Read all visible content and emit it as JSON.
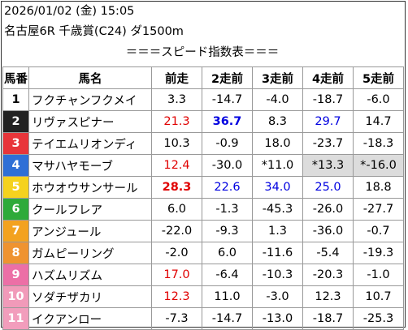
{
  "header": {
    "datetime": "2026/01/02 (金) 15:05",
    "race": "名古屋6R 千歳賞(C24) ダ1500m"
  },
  "subtitle": "＝＝＝スピード指数表＝＝＝",
  "columns": [
    "馬番",
    "馬名",
    "前走",
    "2走前",
    "3走前",
    "4走前",
    "5走前"
  ],
  "rows": [
    {
      "no": "1",
      "name": "フクチャンフクメイ",
      "bg": "#ffffff",
      "fg": "#000000",
      "v": [
        {
          "t": "3.3"
        },
        {
          "t": "-14.7"
        },
        {
          "t": "-4.0"
        },
        {
          "t": "-18.7"
        },
        {
          "t": "-6.0"
        }
      ]
    },
    {
      "no": "2",
      "name": "リヴァスピナー",
      "bg": "#222222",
      "fg": "#ffffff",
      "v": [
        {
          "t": "21.3",
          "c": "red"
        },
        {
          "t": "36.7",
          "c": "blue bold"
        },
        {
          "t": "8.3"
        },
        {
          "t": "29.7",
          "c": "blue"
        },
        {
          "t": "14.7"
        }
      ]
    },
    {
      "no": "3",
      "name": "テイエムリオンディ",
      "bg": "#e8353a",
      "fg": "#ffffff",
      "v": [
        {
          "t": "10.3"
        },
        {
          "t": "-0.9"
        },
        {
          "t": "18.0"
        },
        {
          "t": "-23.7"
        },
        {
          "t": "-18.3"
        }
      ]
    },
    {
      "no": "4",
      "name": "マサハヤモーブ",
      "bg": "#2f6fd6",
      "fg": "#ffffff",
      "v": [
        {
          "t": "12.4",
          "c": "red"
        },
        {
          "t": "-30.0"
        },
        {
          "t": "*11.0"
        },
        {
          "t": "*13.3",
          "c": "gray"
        },
        {
          "t": "*-16.0",
          "c": "gray"
        }
      ]
    },
    {
      "no": "5",
      "name": "ホウオウサンサール",
      "bg": "#f5d21e",
      "fg": "#ffffff",
      "v": [
        {
          "t": "28.3",
          "c": "red bold"
        },
        {
          "t": "22.6",
          "c": "blue"
        },
        {
          "t": "34.0",
          "c": "blue"
        },
        {
          "t": "25.0",
          "c": "blue"
        },
        {
          "t": "18.8"
        }
      ]
    },
    {
      "no": "6",
      "name": "クールフレア",
      "bg": "#2eaa3a",
      "fg": "#ffffff",
      "v": [
        {
          "t": "6.0"
        },
        {
          "t": "-1.3"
        },
        {
          "t": "-45.3"
        },
        {
          "t": "-26.0"
        },
        {
          "t": "-27.7"
        }
      ]
    },
    {
      "no": "7",
      "name": "アンジュール",
      "bg": "#f3a21f",
      "fg": "#ffffff",
      "v": [
        {
          "t": "-22.0"
        },
        {
          "t": "-9.3"
        },
        {
          "t": "1.3"
        },
        {
          "t": "-36.0"
        },
        {
          "t": "-0.7"
        }
      ]
    },
    {
      "no": "8",
      "name": "ガムピーリング",
      "bg": "#ef9330",
      "fg": "#ffffff",
      "v": [
        {
          "t": "-2.0"
        },
        {
          "t": "6.0"
        },
        {
          "t": "-11.6"
        },
        {
          "t": "-5.4"
        },
        {
          "t": "-19.3"
        }
      ]
    },
    {
      "no": "9",
      "name": "ハズムリズム",
      "bg": "#ec6fa6",
      "fg": "#ffffff",
      "v": [
        {
          "t": "17.0",
          "c": "red"
        },
        {
          "t": "-6.4"
        },
        {
          "t": "-10.3"
        },
        {
          "t": "-20.3"
        },
        {
          "t": "-1.0"
        }
      ]
    },
    {
      "no": "10",
      "name": "ソダチザカリ",
      "bg": "#f19ab9",
      "fg": "#ffffff",
      "v": [
        {
          "t": "12.3",
          "c": "red"
        },
        {
          "t": "11.0"
        },
        {
          "t": "-3.0"
        },
        {
          "t": "12.3"
        },
        {
          "t": "10.7"
        }
      ]
    },
    {
      "no": "11",
      "name": "イクアンロー",
      "bg": "#f29dbc",
      "fg": "#ffffff",
      "v": [
        {
          "t": "-7.3"
        },
        {
          "t": "-14.7"
        },
        {
          "t": "-13.0"
        },
        {
          "t": "-18.7"
        },
        {
          "t": "-25.3"
        }
      ]
    }
  ]
}
